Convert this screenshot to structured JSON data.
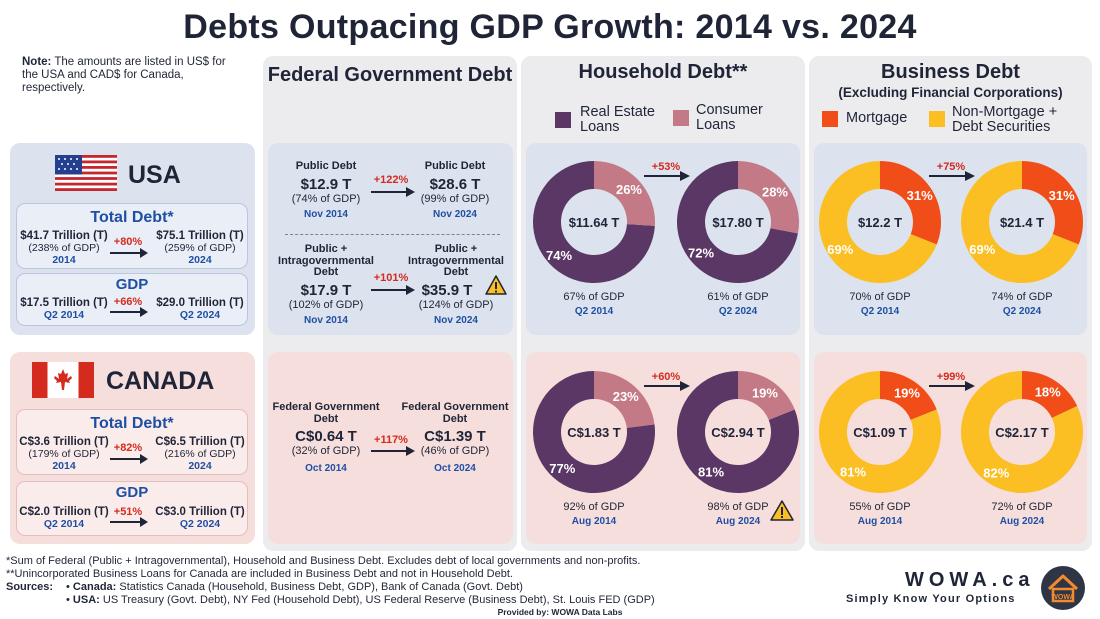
{
  "title": "Debts Outpacing GDP Growth: 2014 vs. 2024",
  "note": {
    "label": "Note:",
    "text": " The amounts are listed in US$ for the USA and CAD$ for Canada, respectively."
  },
  "usa": {
    "name": "USA",
    "total_title": "Total Debt*",
    "total_left": "$41.7 Trillion (T)",
    "total_left_pct": "(238% of GDP)",
    "total_left_date": "2014",
    "total_growth": "+80%",
    "total_right": "$75.1 Trillion (T)",
    "total_right_pct": "(259% of GDP)",
    "total_right_date": "2024",
    "gdp_title": "GDP",
    "gdp_left": "$17.5 Trillion (T)",
    "gdp_left_date": "Q2 2014",
    "gdp_growth": "+66%",
    "gdp_right": "$29.0 Trillion (T)",
    "gdp_right_date": "Q2 2024"
  },
  "canada": {
    "name": "CANADA",
    "total_title": "Total Debt*",
    "total_left": "C$3.6 Trillion (T)",
    "total_left_pct": "(179% of GDP)",
    "total_left_date": "2014",
    "total_growth": "+82%",
    "total_right": "C$6.5 Trillion (T)",
    "total_right_pct": "(216% of GDP)",
    "total_right_date": "2024",
    "gdp_title": "GDP",
    "gdp_left": "C$2.0 Trillion (T)",
    "gdp_left_date": "Q2 2014",
    "gdp_growth": "+51%",
    "gdp_right": "C$3.0 Trillion (T)",
    "gdp_right_date": "Q2 2024"
  },
  "federal": {
    "title": "Federal Government Debt",
    "us_public": {
      "label_left": "Public Debt",
      "left_value": "$12.9 T",
      "left_pct": "(74% of GDP)",
      "left_date": "Nov 2014",
      "growth": "+122%",
      "label_right": "Public Debt",
      "right_value": "$28.6 T",
      "right_pct": "(99% of GDP)",
      "right_date": "Nov 2024"
    },
    "us_intra": {
      "label_left": "Public + Intragovernmental Debt",
      "left_value": "$17.9 T",
      "left_pct": "(102% of GDP)",
      "left_date": "Nov 2014",
      "growth": "+101%",
      "label_right": "Public + Intragovernmental Debt",
      "right_value": "$35.9 T",
      "right_pct": "(124% of GDP)",
      "right_date": "Nov 2024"
    },
    "ca": {
      "label_left": "Federal Government Debt",
      "left_value": "C$0.64 T",
      "left_pct": "(32% of GDP)",
      "left_date": "Oct 2014",
      "growth": "+117%",
      "label_right": "Federal Government Debt",
      "right_value": "C$1.39 T",
      "right_pct": "(46% of GDP)",
      "right_date": "Oct 2024"
    }
  },
  "household": {
    "title": "Household Debt**",
    "legend": [
      "Real Estate Loans",
      "Consumer Loans"
    ]
  },
  "business": {
    "title": "Business Debt",
    "subtitle": "(Excluding Financial Corporations)",
    "legend": [
      "Mortgage",
      "Non-Mortgage + Debt Securities"
    ]
  },
  "colors": {
    "real_estate": "#5b3766",
    "consumer": "#c47a86",
    "mortgage": "#f04d18",
    "non_mortgage": "#fbbf24",
    "us_bg": "#dce3ee",
    "ca_bg": "#f6dedd"
  },
  "chart_data": [
    {
      "type": "pie",
      "id": "us_household",
      "growth": "+53%",
      "series": [
        {
          "name": "Q2 2014",
          "total": "$11.64 T",
          "gdp": "67% of GDP",
          "date": "Q2 2014",
          "values": [
            74,
            26
          ]
        },
        {
          "name": "Q2 2024",
          "total": "$17.80 T",
          "gdp": "61% of GDP",
          "date": "Q2 2024",
          "values": [
            72,
            28
          ]
        }
      ],
      "labels": [
        "Real Estate Loans",
        "Consumer Loans"
      ]
    },
    {
      "type": "pie",
      "id": "us_business",
      "growth": "+75%",
      "series": [
        {
          "name": "Q2 2014",
          "total": "$12.2 T",
          "gdp": "70% of GDP",
          "date": "Q2 2014",
          "values": [
            31,
            69
          ]
        },
        {
          "name": "Q2 2024",
          "total": "$21.4 T",
          "gdp": "74% of GDP",
          "date": "Q2 2024",
          "values": [
            31,
            69
          ]
        }
      ],
      "labels": [
        "Mortgage",
        "Non-Mortgage + Debt Securities"
      ]
    },
    {
      "type": "pie",
      "id": "ca_household",
      "growth": "+60%",
      "series": [
        {
          "name": "Aug 2014",
          "total": "C$1.83 T",
          "gdp": "92% of GDP",
          "date": "Aug 2014",
          "values": [
            77,
            23
          ]
        },
        {
          "name": "Aug 2024",
          "total": "C$2.94 T",
          "gdp": "98% of GDP",
          "date": "Aug 2024",
          "values": [
            81,
            19
          ]
        }
      ],
      "labels": [
        "Real Estate Loans",
        "Consumer Loans"
      ]
    },
    {
      "type": "pie",
      "id": "ca_business",
      "growth": "+99%",
      "series": [
        {
          "name": "Aug 2014",
          "total": "C$1.09 T",
          "gdp": "55% of GDP",
          "date": "Aug 2014",
          "values": [
            19,
            81
          ]
        },
        {
          "name": "Aug 2024",
          "total": "C$2.17 T",
          "gdp": "72% of GDP",
          "date": "Aug 2024",
          "values": [
            18,
            82
          ]
        }
      ],
      "labels": [
        "Mortgage",
        "Non-Mortgage + Debt Securities"
      ]
    }
  ],
  "footer": {
    "line1": "*Sum of Federal (Public + Intragovernmental), Household and Business Debt. Excludes debt of local governments and non-profits.",
    "line2": "**Unincorporated Business Loans for Canada are included in Business Debt and not in Household Debt.",
    "sources_label": "Sources:",
    "canada_label": "Canada:",
    "canada_text": " Statistics Canada (Household, Business Debt, GDP), Bank of Canada (Govt. Debt)",
    "usa_label": "USA:",
    "usa_text": " US Treasury (Govt. Debt), NY Fed (Household Debt), US Federal Reserve (Business Debt), St. Louis FED (GDP)",
    "provided": "Provided by: WOWA Data Labs"
  },
  "brand": {
    "name": "WOWA.ca",
    "tagline": "Simply Know Your Options",
    "logo_text": "WOWA"
  }
}
